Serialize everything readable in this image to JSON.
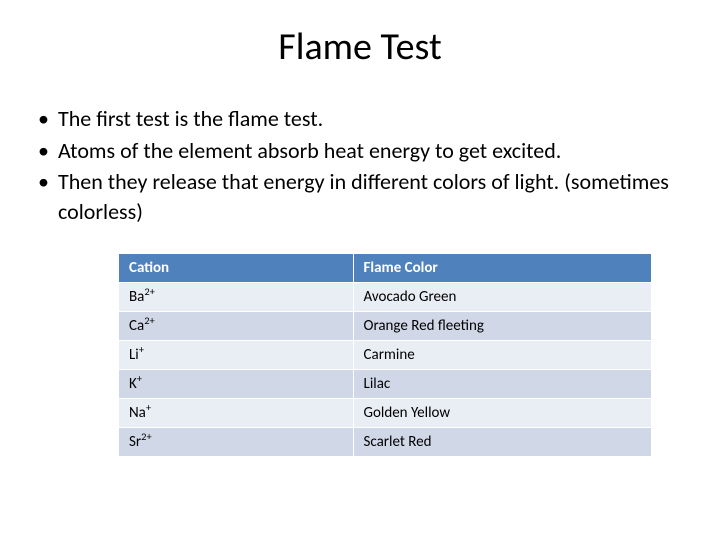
{
  "title": "Flame Test",
  "bullets": [
    "The first test is the flame test.",
    "Atoms of the element absorb heat energy to get excited.",
    "Then they release that energy in different colors of light. (sometimes colorless)"
  ],
  "table": {
    "type": "table",
    "header_bg": "#4f81bd",
    "header_fg": "#ffffff",
    "row_bg_odd": "#e9edf4",
    "row_bg_even": "#d0d8e8",
    "border_color": "#ffffff",
    "font_size": 15,
    "columns": [
      "Cation",
      "Flame Color"
    ],
    "column_widths_pct": [
      44,
      56
    ],
    "rows": [
      {
        "cation_base": "Ba",
        "cation_sup": "2+",
        "color": "Avocado Green"
      },
      {
        "cation_base": "Ca",
        "cation_sup": "2+",
        "color": "Orange Red fleeting"
      },
      {
        "cation_base": "Li",
        "cation_sup": "+",
        "color": "Carmine"
      },
      {
        "cation_base": "K",
        "cation_sup": "+",
        "color": "Lilac"
      },
      {
        "cation_base": "Na",
        "cation_sup": "+",
        "color": "Golden Yellow"
      },
      {
        "cation_base": "Sr",
        "cation_sup": "2+",
        "color": "Scarlet Red"
      }
    ]
  }
}
